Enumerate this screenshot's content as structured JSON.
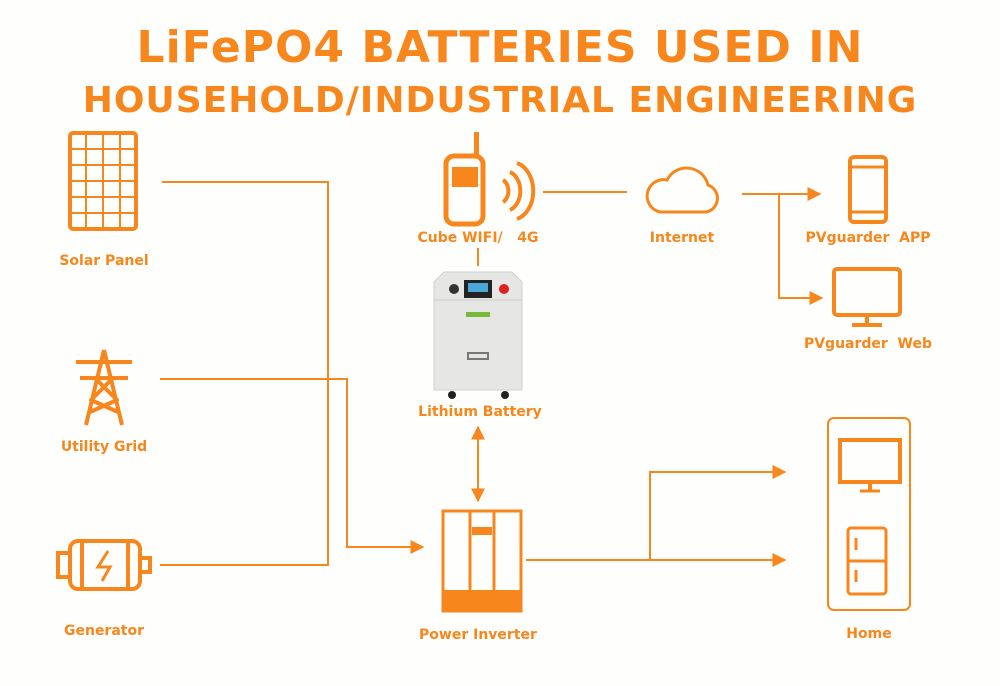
{
  "title": {
    "line1": "LiFePO4 BATTERIES USED IN",
    "line2": "HOUSEHOLD/INDUSTRIAL ENGINEERING"
  },
  "colors": {
    "accent": "#f7861c",
    "background": "#fefefc"
  },
  "nodes": {
    "solar": {
      "label": "Solar Panel",
      "icon": "solar-panel-icon"
    },
    "grid": {
      "label": "Utility Grid",
      "icon": "power-tower-icon"
    },
    "generator": {
      "label": "Generator",
      "icon": "generator-icon"
    },
    "wifi": {
      "label": "Cube WIFI/   4G",
      "icon": "walkie-talkie-icon"
    },
    "battery": {
      "label": "Lithium Battery",
      "icon": "battery-cabinet-image"
    },
    "inverter": {
      "label": "Power Inverter",
      "icon": "inverter-icon"
    },
    "internet": {
      "label": "Internet",
      "icon": "cloud-icon"
    },
    "app": {
      "label": "PVguarder  APP",
      "icon": "smartphone-icon"
    },
    "web": {
      "label": "PVguarder  Web",
      "icon": "monitor-icon"
    },
    "home": {
      "label": "Home",
      "icon": "home-appliances-icon"
    }
  }
}
